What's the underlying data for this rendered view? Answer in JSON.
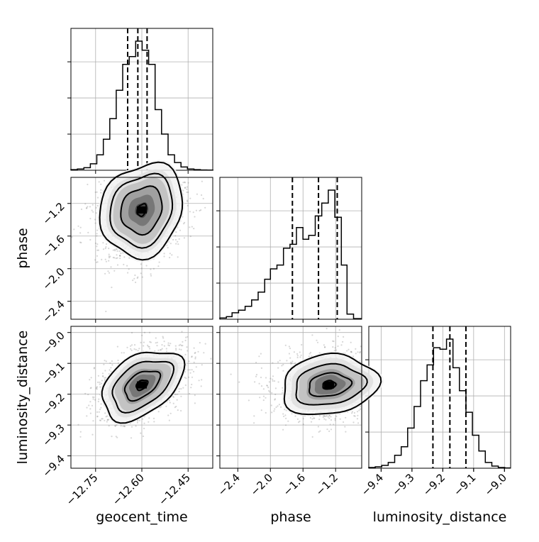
{
  "chart_data": {
    "type": "corner",
    "title": "",
    "parameters": [
      {
        "name": "geocent_time",
        "label": "geocent_time",
        "range": [
          -12.83,
          -12.37
        ],
        "ticks": [
          -12.75,
          -12.6,
          -12.45
        ],
        "tick_labels": [
          "−12.75",
          "−12.60",
          "−12.45"
        ],
        "quantiles": [
          -12.646,
          -12.613,
          -12.583
        ],
        "histogram": {
          "bin_edges": [
            -12.83,
            -12.809,
            -12.788,
            -12.767,
            -12.746,
            -12.725,
            -12.704,
            -12.683,
            -12.662,
            -12.641,
            -12.62,
            -12.599,
            -12.578,
            -12.557,
            -12.536,
            -12.515,
            -12.494,
            -12.473,
            -12.452,
            -12.431,
            -12.41,
            -12.389,
            -12.368
          ],
          "counts": [
            0.005,
            0.01,
            0.02,
            0.05,
            0.12,
            0.24,
            0.4,
            0.62,
            0.82,
            0.88,
            1.0,
            0.93,
            0.82,
            0.47,
            0.28,
            0.12,
            0.06,
            0.025,
            0.01,
            0.005,
            0.002,
            0.001
          ]
        }
      },
      {
        "name": "phase",
        "label": "phase",
        "range": [
          -2.62,
          -0.88
        ],
        "ticks": [
          -2.4,
          -2.0,
          -1.6,
          -1.2
        ],
        "tick_labels": [
          "−2.4",
          "−2.0",
          "−1.6",
          "−1.2"
        ],
        "quantiles": [
          -1.73,
          -1.41,
          -1.18
        ],
        "histogram": {
          "bin_edges": [
            -2.62,
            -2.54,
            -2.47,
            -2.39,
            -2.31,
            -2.23,
            -2.15,
            -2.07,
            -2.0,
            -1.92,
            -1.84,
            -1.76,
            -1.68,
            -1.6,
            -1.53,
            -1.45,
            -1.37,
            -1.29,
            -1.21,
            -1.13,
            -1.06,
            -0.98,
            -0.88
          ],
          "counts": [
            0.01,
            0.02,
            0.05,
            0.07,
            0.1,
            0.15,
            0.21,
            0.31,
            0.39,
            0.42,
            0.55,
            0.58,
            0.71,
            0.62,
            0.65,
            0.8,
            0.9,
            1.0,
            0.79,
            0.42,
            0.04,
            0.005
          ]
        }
      },
      {
        "name": "luminosity_distance",
        "label": "luminosity_distance",
        "range": [
          -9.44,
          -8.98
        ],
        "ticks": [
          -9.4,
          -9.3,
          -9.2,
          -9.1,
          -9.0
        ],
        "tick_labels": [
          "−9.4",
          "−9.3",
          "−9.2",
          "−9.1",
          "−9.0"
        ],
        "quantiles": [
          -9.232,
          -9.177,
          -9.125
        ],
        "histogram": {
          "bin_edges": [
            -9.44,
            -9.419,
            -9.398,
            -9.377,
            -9.356,
            -9.335,
            -9.314,
            -9.293,
            -9.272,
            -9.251,
            -9.23,
            -9.209,
            -9.188,
            -9.167,
            -9.146,
            -9.125,
            -9.104,
            -9.083,
            -9.062,
            -9.041,
            -9.02,
            -8.999,
            -8.98
          ],
          "counts": [
            0.005,
            0.01,
            0.02,
            0.04,
            0.09,
            0.15,
            0.28,
            0.43,
            0.61,
            0.72,
            0.84,
            0.83,
            0.9,
            0.7,
            0.54,
            0.39,
            0.23,
            0.12,
            0.04,
            0.015,
            0.005,
            0.002
          ]
        }
      }
    ],
    "joint_2d": [
      {
        "x": "geocent_time",
        "y": "phase",
        "peak": [
          -12.6,
          -1.28
        ],
        "correlation": 0.45
      },
      {
        "x": "geocent_time",
        "y": "luminosity_distance",
        "peak": [
          -12.6,
          -9.17
        ],
        "correlation": 0.55
      },
      {
        "x": "phase",
        "y": "luminosity_distance",
        "peak": [
          -1.28,
          -9.17
        ],
        "correlation": 0.1
      }
    ],
    "quantile_levels": [
      0.16,
      0.5,
      0.84
    ],
    "grid": true
  }
}
